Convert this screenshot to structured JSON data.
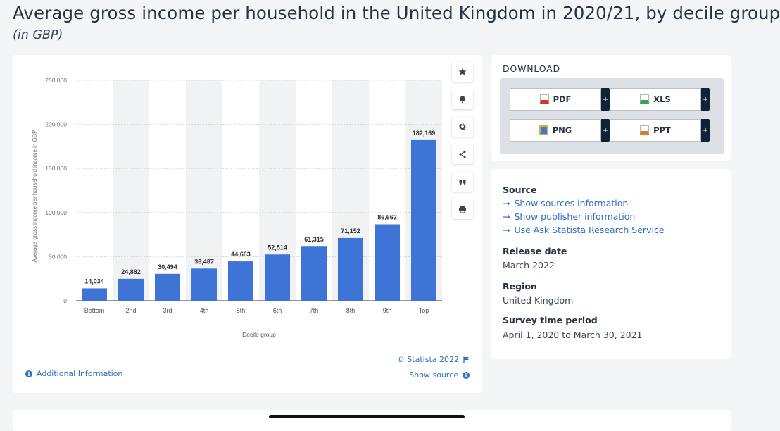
{
  "page": {
    "title": "Average gross income per household in the United Kingdom in 2020/21, by decile group",
    "subtitle": "(in GBP)"
  },
  "toolbar": {
    "icons": [
      "star-icon",
      "bell-icon",
      "gear-icon",
      "share-icon",
      "quote-icon",
      "print-icon"
    ]
  },
  "chart_footer": {
    "credit": "© Statista 2022",
    "show_source": "Show source",
    "additional_info": "Additional Information"
  },
  "download": {
    "title": "DOWNLOAD",
    "buttons": [
      {
        "label": "PDF",
        "color": "#d9342b"
      },
      {
        "label": "XLS",
        "color": "#3aa14a"
      },
      {
        "label": "PNG",
        "color": "#3b7bd0"
      },
      {
        "label": "PPT",
        "color": "#e3772a"
      }
    ],
    "plus": "+"
  },
  "meta": {
    "source_label": "Source",
    "links": [
      "Show sources information",
      "Show publisher information",
      "Use Ask Statista Research Service"
    ],
    "release_label": "Release date",
    "release_value": "March 2022",
    "region_label": "Region",
    "region_value": "United Kingdom",
    "period_label": "Survey time period",
    "period_value": "April 1, 2020 to March 30, 2021"
  },
  "colors": {
    "bar": "#3e74d6",
    "link": "#2f6fbf",
    "band": "#f1f2f4"
  },
  "chart_data": {
    "type": "bar",
    "categories": [
      "Bottom",
      "2nd",
      "3rd",
      "4th",
      "5th",
      "6th",
      "7th",
      "8th",
      "9th",
      "Top"
    ],
    "values": [
      14034,
      24882,
      30494,
      36487,
      44663,
      52514,
      61315,
      71152,
      86662,
      182169
    ],
    "value_labels": [
      "14,034",
      "24,882",
      "30,494",
      "36,487",
      "44,663",
      "52,514",
      "61,315",
      "71,152",
      "86,662",
      "182,169"
    ],
    "xlabel": "Decile group",
    "ylabel": "Average gross income per household income in GBP",
    "ylim": [
      0,
      250000
    ],
    "yticks": [
      0,
      50000,
      100000,
      150000,
      200000,
      250000
    ],
    "ytick_labels": [
      "0",
      "50,000",
      "100,000",
      "150,000",
      "200,000",
      "250,000"
    ],
    "grid": true
  }
}
